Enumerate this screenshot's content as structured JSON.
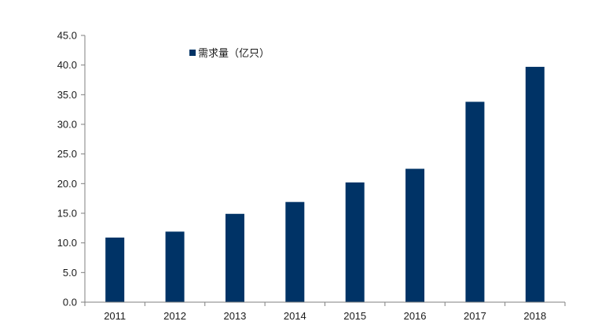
{
  "chart_data": {
    "type": "bar",
    "categories": [
      "2011",
      "2012",
      "2013",
      "2014",
      "2015",
      "2016",
      "2017",
      "2018"
    ],
    "series": [
      {
        "name": "需求量（亿只）",
        "values": [
          10.9,
          11.9,
          14.9,
          16.9,
          20.2,
          22.5,
          33.8,
          39.7
        ]
      }
    ],
    "ylim": [
      0,
      45
    ],
    "yticks": [
      0,
      5,
      10,
      15,
      20,
      25,
      30,
      35,
      40,
      45
    ],
    "ytick_labels": [
      "0.0",
      "5.0",
      "10.0",
      "15.0",
      "20.0",
      "25.0",
      "30.0",
      "35.0",
      "40.0",
      "45.0"
    ],
    "grid": false,
    "legend_position": "top-left",
    "bar_color": "#003366"
  }
}
